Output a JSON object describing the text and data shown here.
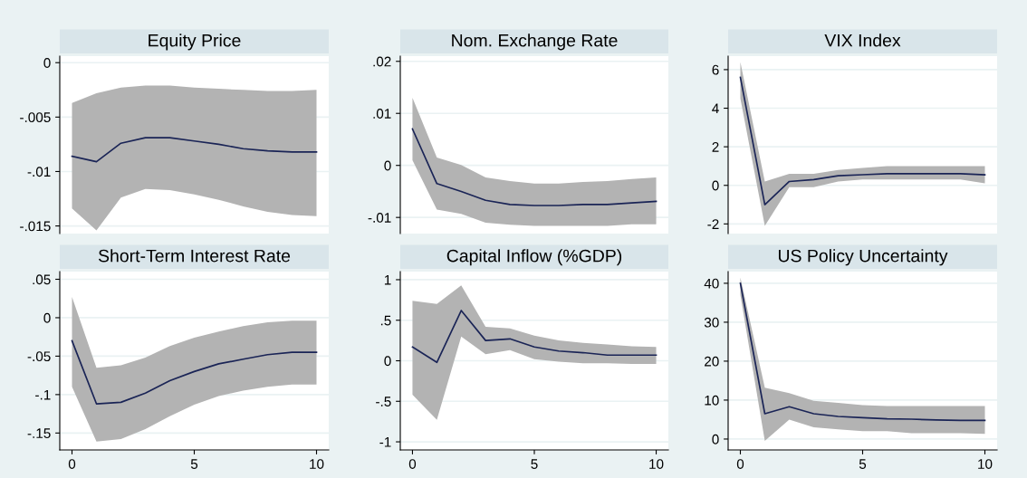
{
  "chart_data": [
    {
      "type": "line",
      "title": "Equity Price",
      "x": [
        0,
        1,
        2,
        3,
        4,
        5,
        6,
        7,
        8,
        9,
        10
      ],
      "xlim": [
        -0.5,
        10.5
      ],
      "ylim": [
        -0.0157,
        0.0006
      ],
      "yticks": [
        0,
        {
          "value": -0.005,
          "label": "-.005"
        },
        {
          "value": -0.01,
          "label": "-.01"
        },
        {
          "value": -0.015,
          "label": "-.015"
        }
      ],
      "grid": "y",
      "tick_labels": "y",
      "series": [
        {
          "color": "#1a2456",
          "values": [
            -0.0086,
            -0.0091,
            -0.0074,
            -0.0069,
            -0.0069,
            -0.0072,
            -0.0075,
            -0.0079,
            -0.0081,
            -0.0082,
            -0.0082
          ],
          "upper": [
            -0.0037,
            -0.0028,
            -0.0023,
            -0.0021,
            -0.0021,
            -0.0023,
            -0.0024,
            -0.0025,
            -0.0026,
            -0.0026,
            -0.0025
          ],
          "lower": [
            -0.0134,
            -0.0154,
            -0.0124,
            -0.0116,
            -0.0117,
            -0.0121,
            -0.0126,
            -0.0132,
            -0.0137,
            -0.014,
            -0.0141
          ]
        }
      ]
    },
    {
      "type": "line",
      "title": "Nom. Exchange Rate",
      "x": [
        0,
        1,
        2,
        3,
        4,
        5,
        6,
        7,
        8,
        9,
        10
      ],
      "xlim": [
        -0.5,
        10.5
      ],
      "ylim": [
        -0.0131,
        0.021
      ],
      "yticks": [
        {
          "value": 0.02,
          "label": ".02"
        },
        {
          "value": 0.01,
          "label": ".01"
        },
        0,
        {
          "value": -0.01,
          "label": "-.01"
        }
      ],
      "grid": "y",
      "tick_labels": "y",
      "series": [
        {
          "color": "#1a2456",
          "values": [
            0.007,
            -0.0035,
            -0.005,
            -0.0067,
            -0.0075,
            -0.0077,
            -0.0077,
            -0.0075,
            -0.0075,
            -0.0072,
            -0.0069
          ],
          "upper": [
            0.013,
            0.0015,
            0.0001,
            -0.0023,
            -0.003,
            -0.0035,
            -0.0035,
            -0.0032,
            -0.003,
            -0.0026,
            -0.0023
          ],
          "lower": [
            0.001,
            -0.0085,
            -0.0093,
            -0.011,
            -0.0114,
            -0.0116,
            -0.0116,
            -0.0116,
            -0.0116,
            -0.0113,
            -0.0113
          ]
        }
      ]
    },
    {
      "type": "line",
      "title": "VIX Index",
      "x": [
        0,
        1,
        2,
        3,
        4,
        5,
        6,
        7,
        8,
        9,
        10
      ],
      "xlim": [
        -0.5,
        10.5
      ],
      "ylim": [
        -2.5,
        6.7
      ],
      "yticks": [
        6,
        4,
        2,
        0,
        -2
      ],
      "grid": "y",
      "tick_labels": "y",
      "series": [
        {
          "color": "#1a2456",
          "values": [
            5.6,
            -1.0,
            0.2,
            0.3,
            0.5,
            0.55,
            0.6,
            0.6,
            0.6,
            0.6,
            0.55
          ],
          "upper": [
            6.4,
            0.2,
            0.6,
            0.6,
            0.8,
            0.9,
            1.0,
            1.0,
            1.0,
            1.0,
            1.0
          ],
          "lower": [
            4.5,
            -2.1,
            -0.1,
            -0.1,
            0.2,
            0.3,
            0.3,
            0.3,
            0.3,
            0.3,
            0.1
          ]
        }
      ]
    },
    {
      "type": "line",
      "title": "Short-Term Interest Rate",
      "x": [
        0,
        1,
        2,
        3,
        4,
        5,
        6,
        7,
        8,
        9,
        10
      ],
      "xlim": [
        -0.5,
        10.5
      ],
      "xticks": [
        0,
        5,
        10
      ],
      "ylim": [
        -0.172,
        0.06
      ],
      "yticks": [
        {
          "value": 0.05,
          "label": ".05"
        },
        0,
        {
          "value": -0.05,
          "label": "-.05"
        },
        {
          "value": -0.1,
          "label": "-.1"
        },
        {
          "value": -0.15,
          "label": "-.15"
        }
      ],
      "grid": "y",
      "series": [
        {
          "color": "#1a2456",
          "values": [
            -0.03,
            -0.112,
            -0.11,
            -0.098,
            -0.082,
            -0.07,
            -0.06,
            -0.054,
            -0.048,
            -0.045,
            -0.045
          ],
          "upper": [
            0.027,
            -0.065,
            -0.062,
            -0.052,
            -0.037,
            -0.026,
            -0.018,
            -0.011,
            -0.006,
            -0.004,
            -0.004
          ],
          "lower": [
            -0.09,
            -0.161,
            -0.158,
            -0.145,
            -0.128,
            -0.113,
            -0.102,
            -0.095,
            -0.09,
            -0.087,
            -0.087
          ]
        }
      ]
    },
    {
      "type": "line",
      "title": "Capital Inflow (%GDP)",
      "x": [
        0,
        1,
        2,
        3,
        4,
        5,
        6,
        7,
        8,
        9,
        10
      ],
      "xlim": [
        -0.5,
        10.5
      ],
      "xticks": [
        0,
        5,
        10
      ],
      "ylim": [
        -1.1,
        1.1
      ],
      "yticks": [
        1,
        {
          "value": 0.5,
          "label": ".5"
        },
        0,
        {
          "value": -0.5,
          "label": "-.5"
        },
        -1
      ],
      "grid": "y",
      "series": [
        {
          "color": "#1a2456",
          "values": [
            0.17,
            -0.02,
            0.62,
            0.25,
            0.27,
            0.17,
            0.12,
            0.1,
            0.07,
            0.07,
            0.07
          ],
          "upper": [
            0.74,
            0.7,
            0.93,
            0.42,
            0.4,
            0.31,
            0.25,
            0.22,
            0.2,
            0.18,
            0.17
          ],
          "lower": [
            -0.42,
            -0.73,
            0.3,
            0.08,
            0.13,
            0.02,
            -0.01,
            -0.03,
            -0.03,
            -0.04,
            -0.04
          ]
        }
      ]
    },
    {
      "type": "line",
      "title": "US Policy Uncertainty",
      "x": [
        0,
        1,
        2,
        3,
        4,
        5,
        6,
        7,
        8,
        9,
        10
      ],
      "xlim": [
        -0.5,
        10.5
      ],
      "xticks": [
        0,
        5,
        10
      ],
      "ylim": [
        -2.8,
        43
      ],
      "yticks": [
        40,
        30,
        20,
        10,
        0
      ],
      "grid": "y",
      "series": [
        {
          "color": "#1a2456",
          "values": [
            40,
            6.5,
            8.3,
            6.5,
            5.8,
            5.5,
            5.2,
            5.1,
            4.9,
            4.8,
            4.8
          ],
          "upper": [
            41.5,
            13.2,
            11.8,
            9.8,
            9.3,
            8.7,
            8.5,
            8.5,
            8.5,
            8.5,
            8.5
          ],
          "lower": [
            37,
            -0.5,
            5,
            3,
            2.5,
            2,
            2,
            1.5,
            1.5,
            1.5,
            1.3
          ]
        }
      ]
    }
  ]
}
